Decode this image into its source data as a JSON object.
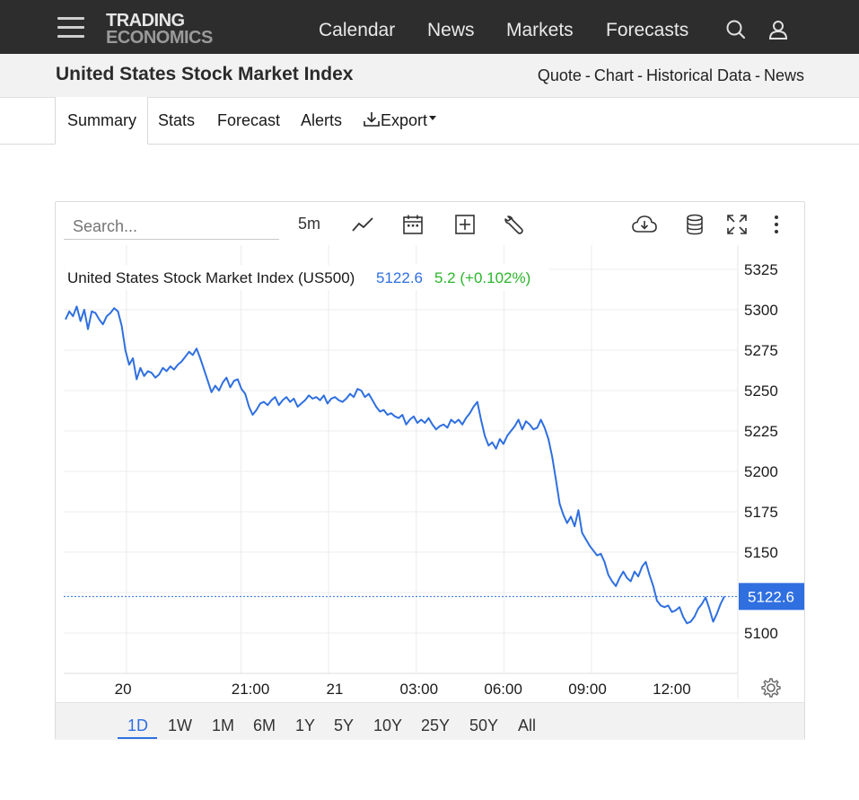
{
  "header": {
    "logo_line1": "TRADING",
    "logo_line2": "ECONOMICS",
    "nav": [
      "Calendar",
      "News",
      "Markets",
      "Forecasts"
    ]
  },
  "subheader": {
    "title": "United States Stock Market Index",
    "links": [
      "Quote",
      "Chart",
      "Historical Data",
      "News"
    ]
  },
  "tabs": [
    "Summary",
    "Stats",
    "Forecast",
    "Alerts",
    "Export"
  ],
  "active_tab": "Summary",
  "toolbar": {
    "search_placeholder": "Search...",
    "interval": "5m"
  },
  "ranges": [
    "1D",
    "1W",
    "1M",
    "6M",
    "1Y",
    "5Y",
    "10Y",
    "25Y",
    "50Y",
    "All"
  ],
  "active_range": "1D",
  "colors": {
    "line": "#2f6fe0",
    "change_positive": "#2bb52b",
    "current_price_bg": "#2f6fe0"
  },
  "chart_data": {
    "type": "line",
    "legend": {
      "name": "United States Stock Market Index (US500)",
      "last": "5122.6",
      "change": "5.2 (+0.102%)"
    },
    "current_value": 5122.6,
    "current_label": "5122.6",
    "ylim": [
      5075,
      5340
    ],
    "y_ticks": [
      5100,
      5125,
      5150,
      5175,
      5200,
      5225,
      5250,
      5275,
      5300,
      5325
    ],
    "y_tick_labels": [
      "5100",
      "5150",
      "5175",
      "5200",
      "5225",
      "5250",
      "5275",
      "5300",
      "5325"
    ],
    "x_tick_labels": [
      "20",
      "21:00",
      "21",
      "03:00",
      "06:00",
      "09:00",
      "12:00"
    ],
    "grid": true,
    "series": [
      {
        "values": [
          5294,
          5299,
          5296,
          5302,
          5293,
          5300,
          5288,
          5299,
          5298,
          5294,
          5291,
          5296,
          5298,
          5301,
          5299,
          5290,
          5275,
          5266,
          5270,
          5257,
          5264,
          5259,
          5262,
          5261,
          5258,
          5260,
          5264,
          5262,
          5265,
          5263,
          5266,
          5268,
          5271,
          5274,
          5272,
          5276,
          5270,
          5263,
          5256,
          5249,
          5253,
          5250,
          5255,
          5258,
          5252,
          5256,
          5257,
          5251,
          5248,
          5240,
          5235,
          5238,
          5242,
          5243,
          5241,
          5244,
          5246,
          5241,
          5244,
          5246,
          5243,
          5245,
          5240,
          5242,
          5244,
          5247,
          5245,
          5246,
          5244,
          5247,
          5242,
          5245,
          5246,
          5244,
          5243,
          5245,
          5248,
          5246,
          5251,
          5250,
          5246,
          5248,
          5244,
          5240,
          5237,
          5238,
          5235,
          5236,
          5234,
          5233,
          5235,
          5229,
          5232,
          5234,
          5230,
          5232,
          5230,
          5233,
          5229,
          5226,
          5228,
          5229,
          5227,
          5232,
          5230,
          5232,
          5229,
          5233,
          5236,
          5240,
          5243,
          5232,
          5222,
          5216,
          5218,
          5214,
          5220,
          5217,
          5222,
          5225,
          5228,
          5232,
          5226,
          5231,
          5229,
          5226,
          5227,
          5232,
          5227,
          5220,
          5209,
          5195,
          5180,
          5173,
          5168,
          5172,
          5166,
          5176,
          5162,
          5158,
          5154,
          5151,
          5148,
          5149,
          5144,
          5136,
          5132,
          5129,
          5134,
          5138,
          5134,
          5132,
          5138,
          5135,
          5141,
          5144,
          5136,
          5129,
          5120,
          5117,
          5116,
          5117,
          5113,
          5114,
          5116,
          5110,
          5106,
          5107,
          5110,
          5115,
          5118,
          5122,
          5115,
          5107,
          5112,
          5118,
          5122.6
        ]
      }
    ]
  }
}
